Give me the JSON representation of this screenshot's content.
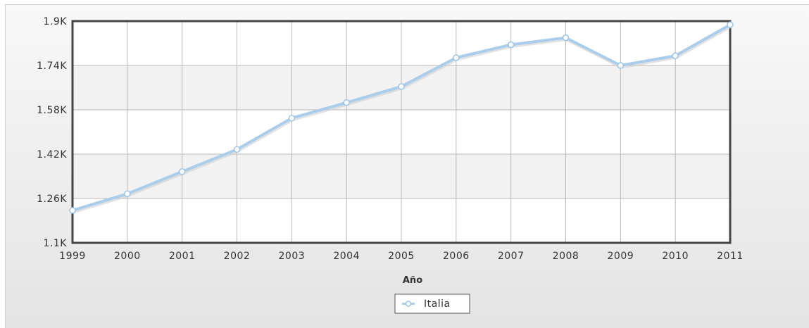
{
  "chart_data": {
    "type": "line",
    "title": "",
    "xlabel": "Año",
    "ylabel": "",
    "categories": [
      "1999",
      "2000",
      "2001",
      "2002",
      "2003",
      "2004",
      "2005",
      "2006",
      "2007",
      "2008",
      "2009",
      "2010",
      "2011"
    ],
    "ylim": [
      1100,
      1900
    ],
    "y_ticks": [
      1100,
      1260,
      1420,
      1580,
      1740,
      1900
    ],
    "y_tick_labels": [
      "1.1K",
      "1.26K",
      "1.42K",
      "1.58K",
      "1.74K",
      "1.9K"
    ],
    "series": [
      {
        "name": "Italia",
        "values": [
          1217,
          1277,
          1357,
          1437,
          1550,
          1606,
          1664,
          1768,
          1815,
          1840,
          1740,
          1775,
          1887
        ]
      }
    ],
    "grid": true,
    "legend_position": "bottom-center",
    "colors": {
      "line": "#a9cdea",
      "marker_fill": "#ffffff",
      "marker_stroke": "#9cc4e6",
      "plot_band_light": "#ffffff",
      "plot_band_dark": "#f2f2f2",
      "grid": "#b8b8b8",
      "plot_border": "#444444"
    }
  }
}
